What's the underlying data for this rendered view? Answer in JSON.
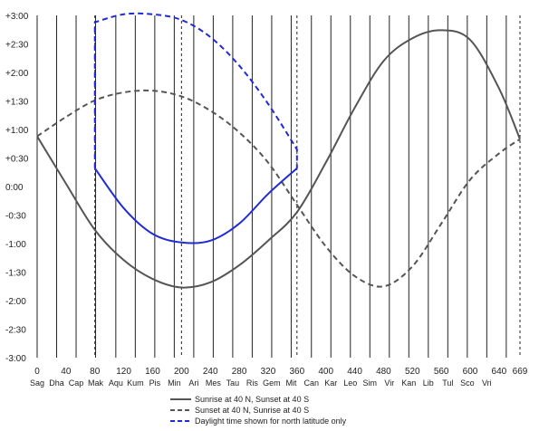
{
  "chart_data": {
    "type": "line",
    "title": "",
    "xlabel": "",
    "ylabel": "",
    "xlim": [
      0,
      669
    ],
    "ylim": [
      -3,
      3
    ],
    "y_ticks": [
      {
        "value": 3,
        "label": "+3:00"
      },
      {
        "value": 2.5,
        "label": "+2:30"
      },
      {
        "value": 2,
        "label": "+2:00"
      },
      {
        "value": 1.5,
        "label": "+1:30"
      },
      {
        "value": 1,
        "label": "+1:00"
      },
      {
        "value": 0.5,
        "label": "+0:30"
      },
      {
        "value": 0,
        "label": "0:00"
      },
      {
        "value": -0.5,
        "label": "-0:30"
      },
      {
        "value": -1,
        "label": "-1:00"
      },
      {
        "value": -1.5,
        "label": "-1:30"
      },
      {
        "value": -2,
        "label": "-2:00"
      },
      {
        "value": -2.5,
        "label": "-2:30"
      },
      {
        "value": -3,
        "label": "-3:00"
      }
    ],
    "x_ticks": [
      0,
      40,
      80,
      120,
      160,
      200,
      240,
      280,
      320,
      360,
      400,
      440,
      480,
      520,
      560,
      600,
      640,
      669
    ],
    "categories": [
      {
        "label": "Sag",
        "x": 0
      },
      {
        "label": "Dha",
        "x": 27
      },
      {
        "label": "Cap",
        "x": 54
      },
      {
        "label": "Mak",
        "x": 81
      },
      {
        "label": "Aqu",
        "x": 109
      },
      {
        "label": "Kum",
        "x": 136
      },
      {
        "label": "Pis",
        "x": 163
      },
      {
        "label": "Min",
        "x": 190
      },
      {
        "label": "Ari",
        "x": 217
      },
      {
        "label": "Mes",
        "x": 244
      },
      {
        "label": "Tau",
        "x": 271
      },
      {
        "label": "Ris",
        "x": 298
      },
      {
        "label": "Gem",
        "x": 325
      },
      {
        "label": "Mit",
        "x": 352
      },
      {
        "label": "Can",
        "x": 380
      },
      {
        "label": "Kar",
        "x": 407
      },
      {
        "label": "Leo",
        "x": 434
      },
      {
        "label": "Sim",
        "x": 461
      },
      {
        "label": "Vir",
        "x": 488
      },
      {
        "label": "Kan",
        "x": 515
      },
      {
        "label": "Lib",
        "x": 542
      },
      {
        "label": "Tul",
        "x": 569
      },
      {
        "label": "Sco",
        "x": 596
      },
      {
        "label": "Vri",
        "x": 623
      }
    ],
    "vlines": [
      {
        "x": 0,
        "style": "solid"
      },
      {
        "x": 27,
        "style": "solid"
      },
      {
        "x": 54,
        "style": "solid"
      },
      {
        "x": 81,
        "style": "solid"
      },
      {
        "x": 109,
        "style": "solid"
      },
      {
        "x": 136,
        "style": "solid"
      },
      {
        "x": 163,
        "style": "solid"
      },
      {
        "x": 190,
        "style": "solid"
      },
      {
        "x": 217,
        "style": "solid"
      },
      {
        "x": 244,
        "style": "solid"
      },
      {
        "x": 271,
        "style": "solid"
      },
      {
        "x": 298,
        "style": "solid"
      },
      {
        "x": 325,
        "style": "solid"
      },
      {
        "x": 352,
        "style": "solid"
      },
      {
        "x": 380,
        "style": "solid"
      },
      {
        "x": 407,
        "style": "solid"
      },
      {
        "x": 434,
        "style": "solid"
      },
      {
        "x": 461,
        "style": "solid"
      },
      {
        "x": 488,
        "style": "solid"
      },
      {
        "x": 515,
        "style": "solid"
      },
      {
        "x": 542,
        "style": "solid"
      },
      {
        "x": 569,
        "style": "solid"
      },
      {
        "x": 596,
        "style": "solid"
      },
      {
        "x": 623,
        "style": "solid"
      },
      {
        "x": 650,
        "style": "solid"
      },
      {
        "x": 80,
        "style": "dashed"
      },
      {
        "x": 200,
        "style": "dashed"
      },
      {
        "x": 360,
        "style": "dashed"
      },
      {
        "x": 669,
        "style": "dashed"
      }
    ],
    "series": [
      {
        "name": "Sunrise at 40 N, Sunset at 40 S",
        "style": "solid",
        "color": "#555555",
        "x": [
          0,
          40,
          80,
          120,
          160,
          200,
          240,
          280,
          320,
          360,
          400,
          440,
          480,
          520,
          560,
          600,
          640,
          669
        ],
        "y": [
          0.88,
          0.05,
          -0.76,
          -1.29,
          -1.62,
          -1.77,
          -1.68,
          -1.38,
          -0.95,
          -0.45,
          0.42,
          1.38,
          2.2,
          2.6,
          2.74,
          2.57,
          1.72,
          0.83
        ]
      },
      {
        "name": "Sunset at 40 N, Sunrise at 40 S",
        "style": "dashed",
        "color": "#555555",
        "x": [
          0,
          40,
          80,
          120,
          160,
          200,
          240,
          280,
          320,
          360,
          400,
          440,
          480,
          520,
          560,
          600,
          640,
          669
        ],
        "y": [
          0.88,
          1.22,
          1.51,
          1.65,
          1.68,
          1.58,
          1.33,
          0.95,
          0.42,
          -0.32,
          -1.05,
          -1.57,
          -1.75,
          -1.4,
          -0.65,
          0.12,
          0.58,
          0.83
        ]
      },
      {
        "name": "Daylight time shown for north latitude only",
        "style": "dashed",
        "color": "#1f2bd6",
        "x": [
          80,
          80,
          120,
          160,
          200,
          240,
          280,
          320,
          360,
          360
        ],
        "y": [
          0.32,
          2.88,
          3.02,
          3.02,
          2.92,
          2.62,
          2.12,
          1.45,
          0.65,
          0.32
        ]
      },
      {
        "name": "",
        "style": "solid",
        "color": "#1f2bd6",
        "x": [
          80,
          120,
          160,
          200,
          240,
          280,
          320,
          360
        ],
        "y": [
          0.32,
          -0.38,
          -0.83,
          -0.98,
          -0.95,
          -0.65,
          -0.13,
          0.32
        ]
      }
    ],
    "legend": [
      {
        "label": "Sunrise at 40 N, Sunset at 40 S",
        "style": "solid",
        "color": "#555555"
      },
      {
        "label": "Sunset at 40 N, Sunrise at 40 S",
        "style": "dashed",
        "color": "#555555"
      },
      {
        "label": "Daylight time shown for north latitude only",
        "style": "dashed",
        "color": "#1f2bd6"
      }
    ],
    "legend_position": "bottom-center",
    "grid": "vertical"
  }
}
